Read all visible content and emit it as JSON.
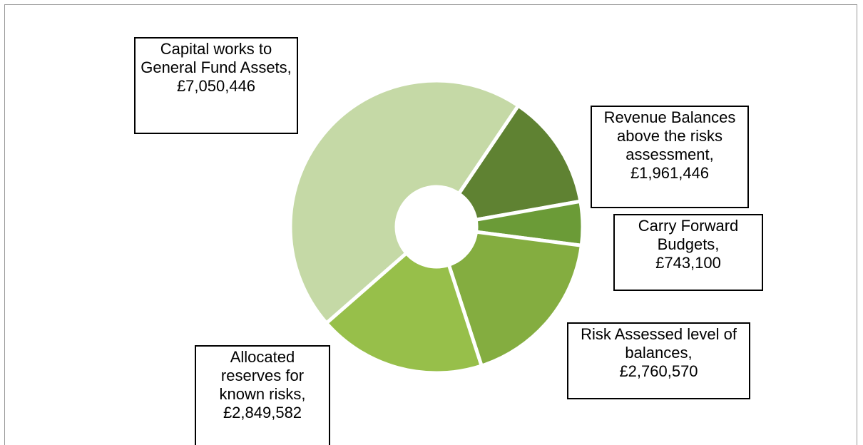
{
  "chart_data": {
    "type": "donut",
    "categories": [
      "Revenue Balances above the risks assessment,",
      "Carry Forward Budgets,",
      "Risk Assessed level of balances,",
      "Allocated reserves for known risks,",
      "Capital works to General Fund Assets,"
    ],
    "values": [
      1961446,
      743100,
      2760570,
      2849582,
      7050446
    ],
    "value_labels": [
      "£1,961,446",
      "£743,100",
      "£2,760,570",
      "£2,849,582",
      "£7,050,446"
    ],
    "colors": [
      "#5f8232",
      "#6b9b37",
      "#84ad40",
      "#97bf4a",
      "#c5d9a6"
    ]
  }
}
